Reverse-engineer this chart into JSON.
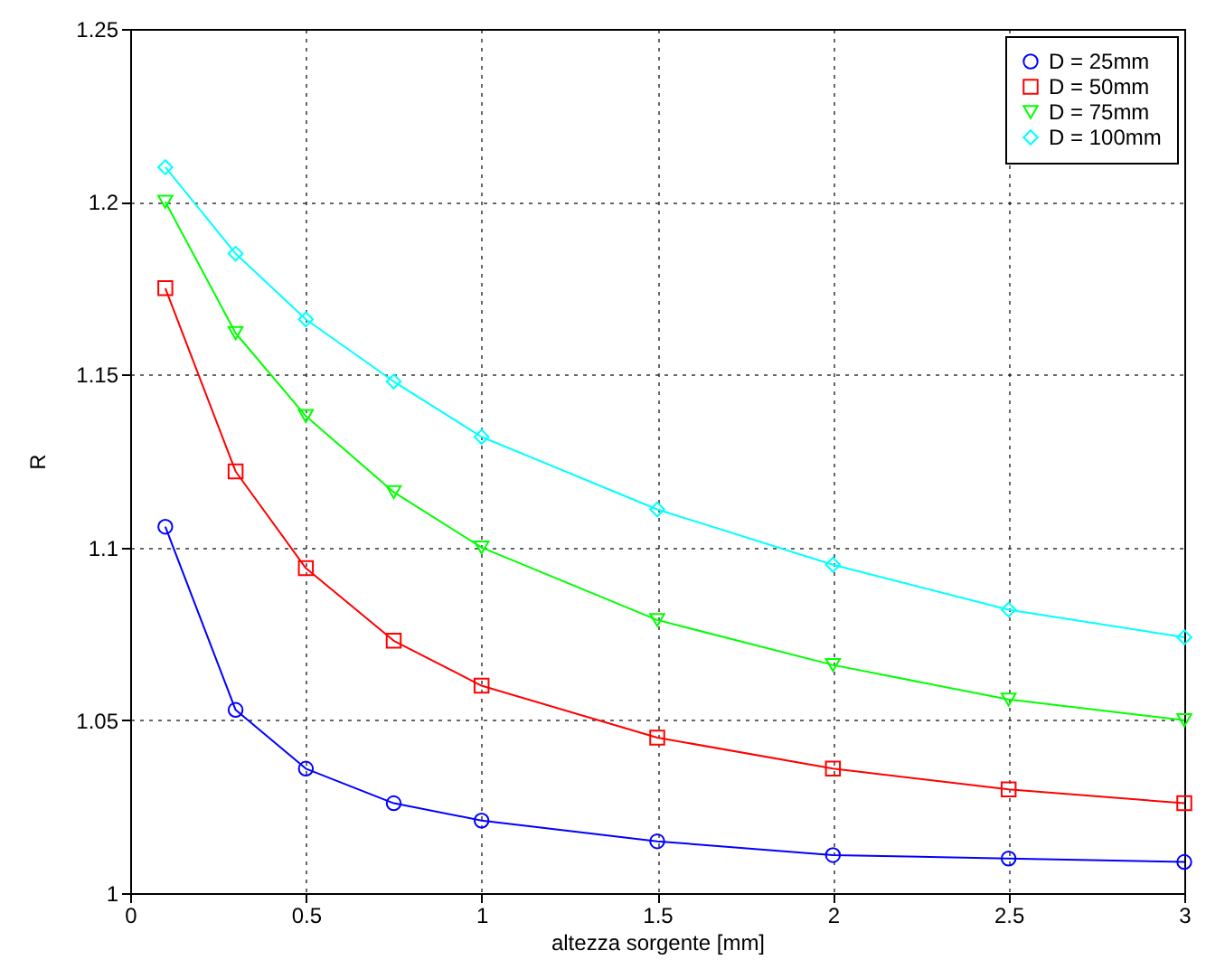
{
  "chart_data": {
    "type": "line",
    "xlabel": "altezza sorgente [mm]",
    "ylabel": "R",
    "xlim": [
      0,
      3
    ],
    "xticks": [
      0,
      0.5,
      1,
      1.5,
      2,
      2.5,
      3
    ],
    "ylim": [
      1,
      1.25
    ],
    "yticks": [
      1,
      1.05,
      1.1,
      1.15,
      1.2,
      1.25
    ],
    "grid": true,
    "legend": "top right",
    "line_style": "solid",
    "x": [
      0.1,
      0.3,
      0.5,
      0.75,
      1,
      1.5,
      2,
      2.5,
      3
    ],
    "series": [
      {
        "name": "D = 25mm",
        "color": "#0000ff",
        "marker": "circle",
        "values": [
          1.106,
          1.053,
          1.036,
          1.026,
          1.021,
          1.015,
          1.011,
          1.01,
          1.009
        ]
      },
      {
        "name": "D = 50mm",
        "color": "#ff0000",
        "marker": "square",
        "values": [
          1.175,
          1.122,
          1.094,
          1.073,
          1.06,
          1.045,
          1.036,
          1.03,
          1.026
        ]
      },
      {
        "name": "D = 75mm",
        "color": "#00ff00",
        "marker": "triangle-down",
        "values": [
          1.2,
          1.162,
          1.138,
          1.116,
          1.1,
          1.079,
          1.066,
          1.056,
          1.05
        ]
      },
      {
        "name": "D = 100mm",
        "color": "#00ffff",
        "marker": "diamond",
        "values": [
          1.21,
          1.185,
          1.166,
          1.148,
          1.132,
          1.111,
          1.095,
          1.082,
          1.074
        ]
      }
    ]
  }
}
